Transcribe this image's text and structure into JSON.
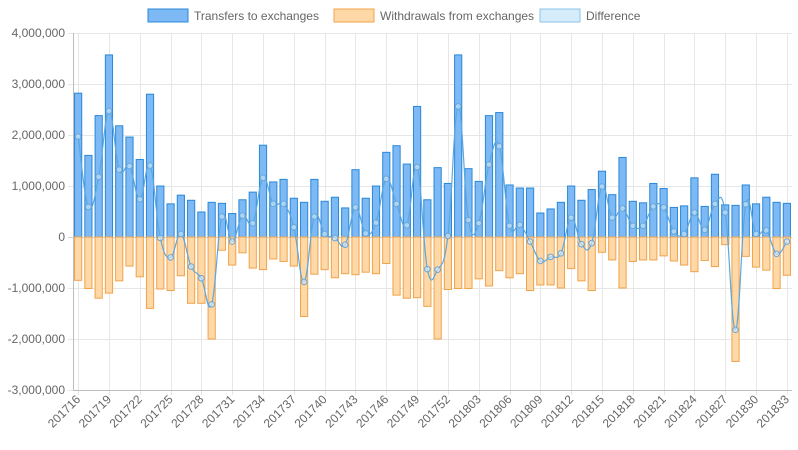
{
  "chart_data": {
    "type": "bar",
    "categories": [
      "201716",
      "201717",
      "201718",
      "201719",
      "201720",
      "201721",
      "201722",
      "201723",
      "201724",
      "201725",
      "201726",
      "201727",
      "201728",
      "201729",
      "201730",
      "201731",
      "201732",
      "201733",
      "201734",
      "201735",
      "201736",
      "201737",
      "201738",
      "201739",
      "201740",
      "201741",
      "201742",
      "201743",
      "201744",
      "201745",
      "201746",
      "201747",
      "201748",
      "201749",
      "201750",
      "201751",
      "201752",
      "201801",
      "201802",
      "201803",
      "201804",
      "201805",
      "201806",
      "201807",
      "201808",
      "201809",
      "201810",
      "201811",
      "201812",
      "201813",
      "201814",
      "201815",
      "201816",
      "201817",
      "201818",
      "201819",
      "201820",
      "201821",
      "201822",
      "201823",
      "201824",
      "201825",
      "201826",
      "201827",
      "201828",
      "201829",
      "201830",
      "201831",
      "201832",
      "201833"
    ],
    "x_tick_labels": [
      "201716",
      "201719",
      "201722",
      "201725",
      "201728",
      "201731",
      "201734",
      "201737",
      "201740",
      "201743",
      "201746",
      "201749",
      "201752",
      "201803",
      "201806",
      "201809",
      "201812",
      "201815",
      "201818",
      "201821",
      "201824",
      "201827",
      "201830",
      "201833"
    ],
    "series": [
      {
        "name": "Transfers to exchanges",
        "kind": "bar",
        "color": "#7cb9f5",
        "border": "#2b88d8",
        "values": [
          2820000,
          1600000,
          2380000,
          3570000,
          2180000,
          1960000,
          1520000,
          2800000,
          1000000,
          650000,
          820000,
          720000,
          490000,
          680000,
          660000,
          460000,
          730000,
          880000,
          1800000,
          1080000,
          1130000,
          760000,
          680000,
          1130000,
          700000,
          780000,
          570000,
          1320000,
          760000,
          1000000,
          1660000,
          1790000,
          1430000,
          2560000,
          730000,
          1360000,
          1050000,
          3570000,
          1340000,
          1090000,
          2380000,
          2440000,
          1020000,
          960000,
          960000,
          470000,
          550000,
          680000,
          1000000,
          720000,
          930000,
          1290000,
          830000,
          1560000,
          700000,
          670000,
          1050000,
          950000,
          580000,
          610000,
          1160000,
          600000,
          1230000,
          630000,
          620000,
          1020000,
          650000,
          780000,
          680000,
          660000
        ]
      },
      {
        "name": "Withdrawals from exchanges",
        "kind": "bar",
        "color": "#ffd8a8",
        "border": "#f0a34a",
        "values": [
          -850000,
          -1010000,
          -1200000,
          -1100000,
          -860000,
          -570000,
          -780000,
          -1400000,
          -1020000,
          -1050000,
          -760000,
          -1300000,
          -1300000,
          -2000000,
          -260000,
          -550000,
          -310000,
          -610000,
          -640000,
          -430000,
          -480000,
          -570000,
          -1560000,
          -730000,
          -640000,
          -800000,
          -720000,
          -740000,
          -690000,
          -720000,
          -520000,
          -1140000,
          -1200000,
          -1190000,
          -1360000,
          -2000000,
          -1030000,
          -1010000,
          -1010000,
          -820000,
          -960000,
          -660000,
          -800000,
          -720000,
          -1050000,
          -940000,
          -940000,
          -1000000,
          -620000,
          -860000,
          -1050000,
          -300000,
          -450000,
          -1000000,
          -480000,
          -450000,
          -450000,
          -370000,
          -470000,
          -550000,
          -680000,
          -460000,
          -580000,
          -150000,
          -2440000,
          -380000,
          -590000,
          -650000,
          -1010000,
          -750000
        ]
      },
      {
        "name": "Difference",
        "kind": "line",
        "color": "#d6ecfb",
        "border": "#8cc3ea",
        "values": [
          1970000,
          590000,
          1180000,
          2470000,
          1320000,
          1390000,
          740000,
          1400000,
          -20000,
          -400000,
          60000,
          -580000,
          -810000,
          -1320000,
          400000,
          -90000,
          420000,
          270000,
          1160000,
          650000,
          650000,
          190000,
          -880000,
          400000,
          60000,
          -20000,
          -150000,
          580000,
          70000,
          280000,
          1140000,
          650000,
          230000,
          1370000,
          -630000,
          -640000,
          20000,
          2560000,
          330000,
          270000,
          1420000,
          1780000,
          220000,
          240000,
          -90000,
          -470000,
          -390000,
          -320000,
          380000,
          -140000,
          -120000,
          990000,
          380000,
          560000,
          220000,
          220000,
          600000,
          580000,
          110000,
          60000,
          480000,
          140000,
          650000,
          480000,
          -1820000,
          640000,
          60000,
          130000,
          -330000,
          -90000
        ]
      }
    ],
    "ylim": [
      -3000000,
      4000000
    ],
    "y_ticks": [
      4000000,
      3000000,
      2000000,
      1000000,
      0,
      -1000000,
      -2000000,
      -3000000
    ],
    "y_tick_labels": [
      "4,000,000",
      "3,000,000",
      "2,000,000",
      "1,000,000",
      "0",
      "-1,000,000",
      "-2,000,000",
      "-3,000,000"
    ],
    "grid": true,
    "legend_position": "top"
  }
}
